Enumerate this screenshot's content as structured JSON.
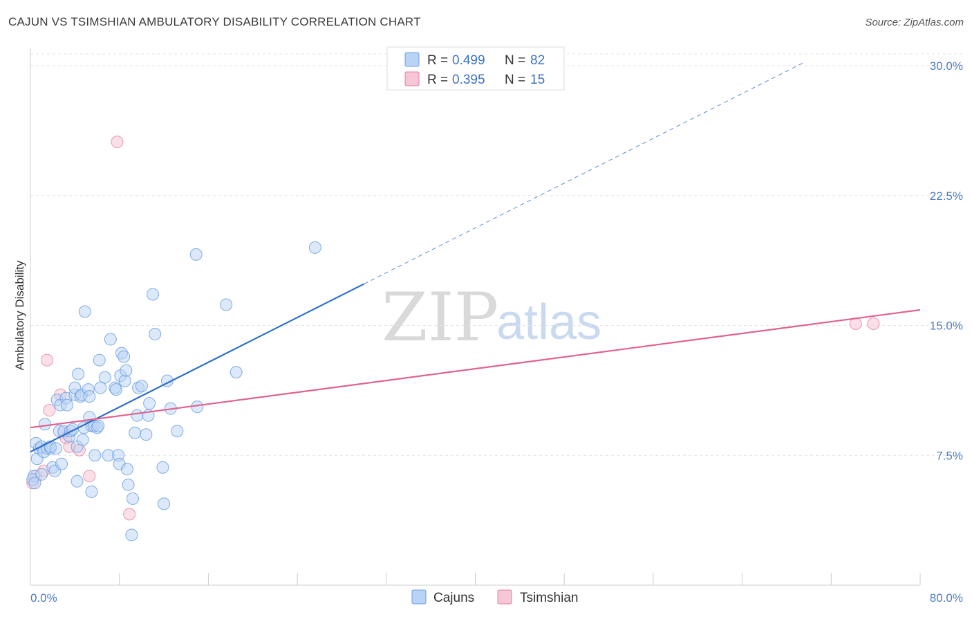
{
  "title": "CAJUN VS TSIMSHIAN AMBULATORY DISABILITY CORRELATION CHART",
  "source": "Source: ZipAtlas.com",
  "colors": {
    "cajun": "#6c9fe0",
    "cajun_fill": "#b9d3f5",
    "tsimshian": "#e57fa2",
    "tsimshian_fill": "#f7c6d6",
    "cajun_line": "#2c6fca",
    "tsimshian_line": "#e0628f",
    "grid": "#e3e3e3",
    "tick_text": "#4a7cc9"
  },
  "watermark": {
    "zip": "ZIP",
    "atlas": "atlas"
  },
  "legend": {
    "rows": [
      {
        "r_label": "R = ",
        "r_value": "0.499",
        "n_label": "N = ",
        "n_value": "82"
      },
      {
        "r_label": "R = ",
        "r_value": "0.395",
        "n_label": "N = ",
        "n_value": "15"
      }
    ]
  },
  "chart_data": {
    "type": "scatter",
    "ylabel": "Ambulatory Disability",
    "xlim": [
      0,
      80
    ],
    "ylim": [
      0,
      31
    ],
    "x_tick_labels": [
      {
        "value": 0,
        "label": "0.0%"
      },
      {
        "value": 80,
        "label": "80.0%"
      }
    ],
    "y_tick_labels": [
      {
        "value": 7.5,
        "label": "7.5%"
      },
      {
        "value": 15,
        "label": "15.0%"
      },
      {
        "value": 22.5,
        "label": "22.5%"
      },
      {
        "value": 30,
        "label": "30.0%"
      }
    ],
    "grid": true,
    "legend_position": "top-center",
    "series": [
      {
        "name": "Cajuns",
        "trend": {
          "x0": 0,
          "y0": 7.7,
          "x1": 30,
          "y1": 17.4,
          "dash_to_x": 69.5
        },
        "points": [
          [
            0.3,
            6.3
          ],
          [
            0.5,
            8.2
          ],
          [
            0.6,
            7.3
          ],
          [
            0.8,
            7.9
          ],
          [
            1.0,
            8.0
          ],
          [
            1.2,
            7.7
          ],
          [
            1.5,
            7.9
          ],
          [
            1.8,
            7.9
          ],
          [
            2.0,
            6.8
          ],
          [
            1.3,
            9.3
          ],
          [
            1.8,
            8.0
          ],
          [
            2.2,
            6.6
          ],
          [
            2.3,
            7.9
          ],
          [
            2.4,
            10.7
          ],
          [
            2.6,
            8.9
          ],
          [
            2.7,
            10.4
          ],
          [
            2.8,
            7.0
          ],
          [
            3.0,
            8.9
          ],
          [
            3.2,
            10.8
          ],
          [
            3.3,
            10.4
          ],
          [
            3.5,
            8.6
          ],
          [
            3.6,
            8.9
          ],
          [
            3.8,
            9.0
          ],
          [
            4.0,
            11.0
          ],
          [
            4.2,
            8.0
          ],
          [
            4.0,
            11.4
          ],
          [
            4.2,
            6.0
          ],
          [
            4.3,
            12.2
          ],
          [
            4.5,
            10.9
          ],
          [
            4.6,
            11.0
          ],
          [
            4.7,
            8.4
          ],
          [
            4.8,
            9.1
          ],
          [
            4.9,
            15.8
          ],
          [
            5.2,
            11.3
          ],
          [
            5.3,
            10.9
          ],
          [
            5.3,
            9.7
          ],
          [
            5.5,
            9.2
          ],
          [
            5.5,
            5.4
          ],
          [
            5.7,
            9.2
          ],
          [
            5.8,
            7.5
          ],
          [
            6.0,
            9.1
          ],
          [
            6.1,
            9.2
          ],
          [
            6.2,
            13.0
          ],
          [
            6.3,
            11.4
          ],
          [
            6.7,
            12.0
          ],
          [
            7.0,
            7.5
          ],
          [
            7.2,
            14.2
          ],
          [
            7.6,
            11.4
          ],
          [
            7.7,
            11.3
          ],
          [
            7.9,
            7.5
          ],
          [
            8.0,
            7.0
          ],
          [
            8.1,
            12.1
          ],
          [
            8.2,
            13.4
          ],
          [
            8.4,
            13.2
          ],
          [
            8.5,
            11.8
          ],
          [
            8.6,
            12.4
          ],
          [
            8.7,
            6.7
          ],
          [
            8.8,
            5.8
          ],
          [
            9.1,
            2.9
          ],
          [
            9.2,
            5.0
          ],
          [
            9.4,
            8.8
          ],
          [
            9.6,
            9.8
          ],
          [
            9.7,
            11.4
          ],
          [
            10.0,
            11.5
          ],
          [
            10.4,
            8.7
          ],
          [
            10.6,
            9.8
          ],
          [
            10.7,
            10.5
          ],
          [
            11.0,
            16.8
          ],
          [
            11.2,
            14.5
          ],
          [
            11.9,
            6.8
          ],
          [
            12.0,
            4.7
          ],
          [
            12.3,
            11.8
          ],
          [
            12.6,
            10.2
          ],
          [
            13.2,
            8.9
          ],
          [
            14.9,
            19.1
          ],
          [
            15.0,
            10.3
          ],
          [
            17.6,
            16.2
          ],
          [
            18.5,
            12.3
          ],
          [
            25.6,
            19.5
          ],
          [
            0.2,
            6.1
          ],
          [
            1.0,
            6.4
          ],
          [
            0.4,
            5.9
          ]
        ]
      },
      {
        "name": "Tsimshian",
        "trend": {
          "x0": 0,
          "y0": 9.1,
          "x1": 80,
          "y1": 15.9
        },
        "points": [
          [
            0.2,
            5.9
          ],
          [
            0.5,
            6.3
          ],
          [
            1.2,
            6.6
          ],
          [
            1.5,
            13.0
          ],
          [
            1.7,
            10.1
          ],
          [
            2.7,
            11.0
          ],
          [
            3.0,
            8.8
          ],
          [
            3.2,
            8.5
          ],
          [
            3.5,
            8.0
          ],
          [
            4.4,
            7.8
          ],
          [
            5.3,
            6.3
          ],
          [
            7.8,
            25.6
          ],
          [
            8.9,
            4.1
          ],
          [
            74.2,
            15.1
          ],
          [
            75.8,
            15.1
          ]
        ]
      }
    ]
  },
  "bottom_legend": {
    "items": [
      {
        "label": "Cajuns"
      },
      {
        "label": "Tsimshian"
      }
    ]
  }
}
